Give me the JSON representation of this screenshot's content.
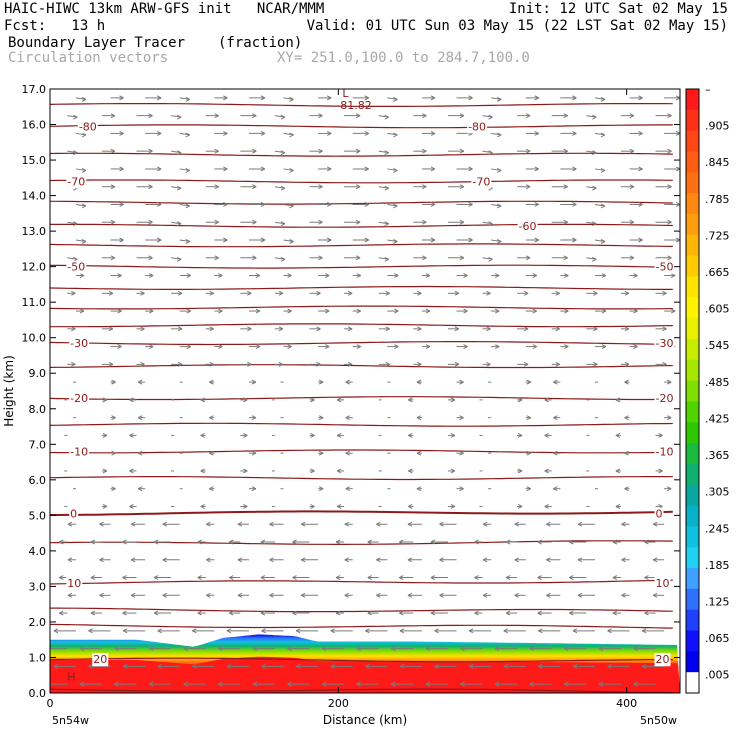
{
  "header": {
    "line1_left": "HAIC-HIWC 13km ARW-GFS init   NCAR/MMM",
    "line1_right": "Init: 12 UTC Sat 02 May 15",
    "line2_left": "Fcst:   13 h",
    "line2_right": "Valid: 01 UTC Sun 03 May 15 (22 LST Sat 02 May 15)",
    "line3_left": "Boundary Layer Tracer",
    "line3_units": "(fraction)",
    "line4_left": "Circulation vectors",
    "line4_xy": "XY= 251.0,100.0 to 284.7,100.0"
  },
  "colors": {
    "contour": "#8b1a1a",
    "vector": "#7a7a7a",
    "tracer_high": "#ff1a1a",
    "tracer_edge": "#0000ff"
  },
  "chart_data": {
    "type": "heatmap",
    "title": "Boundary Layer Tracer",
    "xlabel": "Distance (km)",
    "ylabel": "Height (km)",
    "xlim": [
      0,
      437
    ],
    "ylim": [
      0,
      17
    ],
    "x_ticks": [
      0,
      200,
      400
    ],
    "y_ticks": [
      "0.0",
      "1.0",
      "2.0",
      "3.0",
      "4.0",
      "5.0",
      "6.0",
      "7.0",
      "8.0",
      "9.0",
      "10.0",
      "11.0",
      "12.0",
      "13.0",
      "14.0",
      "15.0",
      "16.0",
      "17.0"
    ],
    "x_endpoints": {
      "left": "5n54w",
      "right": "5n50w"
    },
    "tracer_top_height_km": [
      {
        "x": 0,
        "top": 1.5
      },
      {
        "x": 60,
        "top": 1.5
      },
      {
        "x": 100,
        "top": 1.3
      },
      {
        "x": 120,
        "top": 1.55
      },
      {
        "x": 145,
        "top": 1.65
      },
      {
        "x": 170,
        "top": 1.6
      },
      {
        "x": 185,
        "top": 1.45
      },
      {
        "x": 250,
        "top": 1.45
      },
      {
        "x": 350,
        "top": 1.4
      },
      {
        "x": 437,
        "top": 1.35
      }
    ],
    "temperature_contours": [
      {
        "value": -80,
        "height": 15.95,
        "labels": [
          "-80",
          "-80"
        ],
        "label_x": [
          20,
          290
        ]
      },
      {
        "value": -70,
        "height": 14.4,
        "labels": [
          "-70",
          "-70"
        ],
        "label_x": [
          12,
          293
        ]
      },
      {
        "value": -60,
        "height": 13.15,
        "labels": [
          "-60"
        ],
        "label_x": [
          325
        ]
      },
      {
        "value": -50,
        "height": 12.0,
        "labels": [
          "-50",
          "-50"
        ],
        "label_x": [
          12,
          420
        ]
      },
      {
        "value": -30,
        "height": 9.85,
        "labels": [
          "-30",
          "-30"
        ],
        "label_x": [
          14,
          420
        ]
      },
      {
        "value": -20,
        "height": 8.3,
        "labels": [
          "-20",
          "-20"
        ],
        "label_x": [
          14,
          420
        ]
      },
      {
        "value": -10,
        "height": 6.8,
        "labels": [
          "-10",
          "-10"
        ],
        "label_x": [
          14,
          420
        ]
      },
      {
        "value": 0,
        "height": 5.05,
        "labels": [
          "0",
          "0"
        ],
        "label_x": [
          14,
          420
        ]
      },
      {
        "value": 10,
        "height": 3.1,
        "labels": [
          "10",
          "10"
        ],
        "label_x": [
          12,
          420
        ]
      },
      {
        "value": 20,
        "height": 0.95,
        "labels": [
          "20",
          "20"
        ],
        "label_x": [
          30,
          420
        ]
      }
    ],
    "extra_contour_heights": [
      16.55,
      15.15,
      13.8,
      12.6,
      11.4,
      10.85,
      10.35,
      9.2,
      7.55,
      6.05,
      4.2,
      2.35,
      1.9,
      0.1
    ],
    "minimum_label": {
      "letter": "L",
      "value": "-81.82",
      "x": 200,
      "height": 16.55
    },
    "high_label": {
      "letter": "H",
      "x": 12,
      "height": 0.35
    },
    "colorbar": {
      "labels": [
        "–",
        ".905",
        ".845",
        ".785",
        ".725",
        ".665",
        ".605",
        ".545",
        ".485",
        ".425",
        ".365",
        ".305",
        ".245",
        ".185",
        ".125",
        ".065",
        ".005"
      ],
      "colors": [
        "#ff1a1a",
        "#ff3018",
        "#ff4616",
        "#ff5c14",
        "#ff7012",
        "#ff8810",
        "#ff9e0c",
        "#ffb408",
        "#ffcc04",
        "#ffe400",
        "#fff200",
        "#e8f000",
        "#c8ec00",
        "#a6e600",
        "#7ede00",
        "#50d400",
        "#2ec800",
        "#1abc40",
        "#10b070",
        "#0aa6a0",
        "#08b0c8",
        "#10c0e0",
        "#20d0f0",
        "#40a0ff",
        "#3070ff",
        "#2040ff",
        "#1010ff",
        "#0000ee",
        "#ffffff"
      ]
    }
  }
}
